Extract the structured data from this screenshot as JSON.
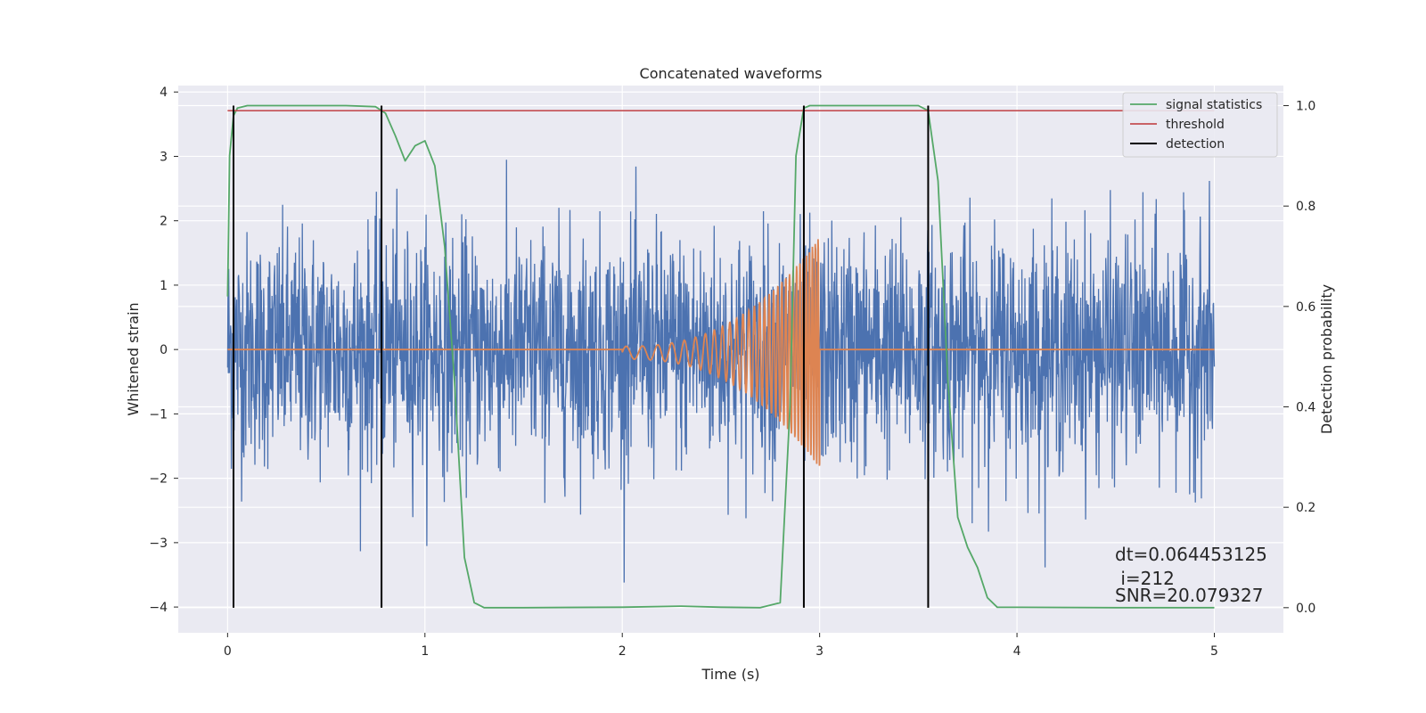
{
  "chart_data": {
    "type": "line",
    "title": "Concatenated waveforms",
    "xlabel": "Time (s)",
    "ylabel": "Whitened strain",
    "ylabel_right": "Detection probability",
    "xlim": [
      -0.25,
      5.35
    ],
    "ylim": [
      -4.4,
      4.1
    ],
    "ylim_right": [
      -0.05,
      1.04
    ],
    "xticks": [
      0,
      1,
      2,
      3,
      4,
      5
    ],
    "yticks": [
      -4,
      -3,
      -2,
      -1,
      0,
      1,
      2,
      3,
      4
    ],
    "yticks_right": [
      0.0,
      0.2,
      0.4,
      0.6,
      0.8,
      1.0
    ],
    "xtick_labels": [
      "0",
      "1",
      "2",
      "3",
      "4",
      "5"
    ],
    "ytick_labels": [
      "−4",
      "−3",
      "−2",
      "−1",
      "0",
      "1",
      "2",
      "3",
      "4"
    ],
    "ytick_right_labels": [
      "0.0",
      "0.2",
      "0.4",
      "0.6",
      "0.8",
      "1.0"
    ],
    "grid": true,
    "legend_position": "top-right",
    "colors": {
      "background": "#EAEAF2",
      "grid": "#FFFFFF",
      "strain": "#4C72B0",
      "template": "#DD8452",
      "signal_statistics": "#55A868",
      "threshold": "#C44E52",
      "detection": "#000000"
    },
    "strain": {
      "x_range": [
        0,
        5
      ],
      "typical_amplitude": 0.9,
      "max_spike": 3.8,
      "min_spike": -4.1
    },
    "template": {
      "start": 2.0,
      "end": 3.0,
      "amplitude_start": 0.1,
      "amplitude_end": 1.8,
      "baseline": 0
    },
    "series": [
      {
        "name": "signal statistics",
        "x": [
          0,
          0.01,
          0.03,
          0.05,
          0.1,
          0.3,
          0.6,
          0.75,
          0.8,
          0.85,
          0.9,
          0.95,
          1.0,
          1.05,
          1.1,
          1.15,
          1.2,
          1.25,
          1.3,
          1.5,
          2.0,
          2.3,
          2.5,
          2.7,
          2.8,
          2.85,
          2.88,
          2.92,
          2.95,
          3.0,
          3.2,
          3.5,
          3.55,
          3.6,
          3.65,
          3.7,
          3.75,
          3.8,
          3.85,
          3.9,
          4.5,
          5.0
        ],
        "y": [
          0.62,
          0.9,
          0.98,
          0.995,
          1.0,
          1.0,
          1.0,
          0.998,
          0.985,
          0.94,
          0.89,
          0.92,
          0.93,
          0.88,
          0.72,
          0.45,
          0.1,
          0.01,
          0.0,
          0.0,
          0.001,
          0.003,
          0.001,
          0.0,
          0.01,
          0.4,
          0.9,
          0.995,
          1.0,
          1.0,
          1.0,
          1.0,
          0.99,
          0.85,
          0.45,
          0.18,
          0.12,
          0.08,
          0.02,
          0.001,
          0.0,
          0.0
        ]
      },
      {
        "name": "threshold",
        "x": [
          0,
          5
        ],
        "y": [
          0.99,
          0.99
        ]
      }
    ],
    "detections": {
      "name": "detection",
      "x": [
        0.03,
        0.78,
        2.92,
        3.55
      ],
      "y_range": [
        0.0,
        1.0
      ]
    },
    "annotations": {
      "dt": "dt=0.064453125",
      "i": " i=212",
      "snr": "SNR=20.079327"
    }
  }
}
